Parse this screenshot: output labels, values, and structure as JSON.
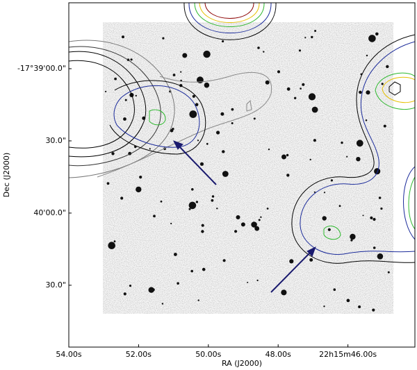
{
  "chart_data": {
    "type": "image",
    "xlabel": "RA (J2000)",
    "ylabel": "Dec (J2000)",
    "xlim": [
      54.0,
      44.08
    ],
    "xticks": [
      {
        "value": 54,
        "label": "54.00s"
      },
      {
        "value": 52,
        "label": "52.00s"
      },
      {
        "value": 50,
        "label": "50.00s"
      },
      {
        "value": 48,
        "label": "48.00s"
      },
      {
        "value": 46,
        "label": "22h15m46.00s"
      }
    ],
    "ylim": [
      -17.68214,
      -17.642389
    ],
    "yticks": [
      {
        "value": -17.65,
        "label": "-17°39'00.0\""
      },
      {
        "value": -17.658333,
        "label": "30.0\""
      },
      {
        "value": -17.666667,
        "label": "40'00.0\""
      },
      {
        "value": -17.675,
        "label": "30.0\""
      }
    ]
  }
}
